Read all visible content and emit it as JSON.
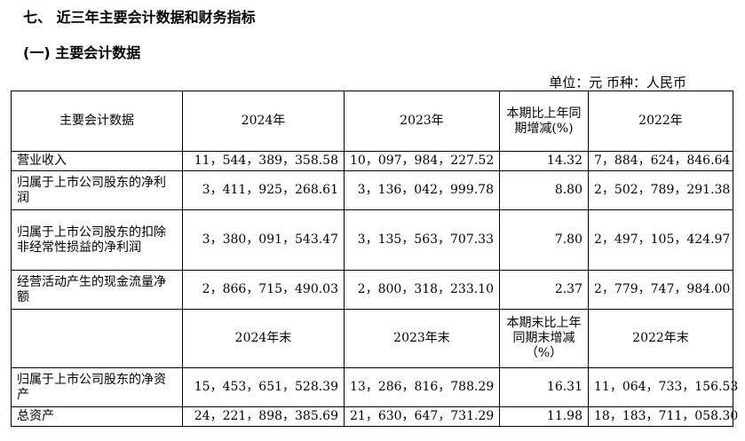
{
  "heading": "七、 近三年主要会计数据和财务指标",
  "subheading": "(一) 主要会计数据",
  "unit_label": "单位：元  币种：人民币",
  "headers1": [
    "主要会计数据",
    "2024年",
    "2023年",
    "本期比上年同期增减(%)",
    "2022年"
  ],
  "headers2": [
    "",
    "2024年末",
    "2023年末",
    "本期末比上年同期末增减（%）",
    "2022年末"
  ],
  "rows1": [
    {
      "label": "营业收入",
      "v2024": "11，544，389，358.58",
      "v2023": "10，097，984，227.52",
      "change": "14.32",
      "v2022": "7，884，624，846.64"
    },
    {
      "label": "归属于上市公司股东的净利润",
      "v2024": "3，411，925，268.61",
      "v2023": "3，136，042，999.78",
      "change": "8.80",
      "v2022": "2，502，789，291.38"
    },
    {
      "label": "归属于上市公司股东的扣除非经常性损益的净利润",
      "v2024": "3，380，091，543.47",
      "v2023": "3，135，563，707.33",
      "change": "7.80",
      "v2022": "2，497，105，424.97"
    },
    {
      "label": "经营活动产生的现金流量净额",
      "v2024": "2，866，715，490.03",
      "v2023": "2，800，318，233.10",
      "change": "2.37",
      "v2022": "2，779，747，984.00"
    }
  ],
  "rows2": [
    {
      "label": "归属于上市公司股东的净资产",
      "v2024": "15，453，651，528.39",
      "v2023": "13，286，816，788.29",
      "change": "16.31",
      "v2022": "11，064，733，156.53"
    },
    {
      "label": "总资产",
      "v2024": "24，221，898，385.69",
      "v2023": "21，630，647，731.29",
      "change": "11.98",
      "v2022": "18，183，711，058.30"
    }
  ]
}
